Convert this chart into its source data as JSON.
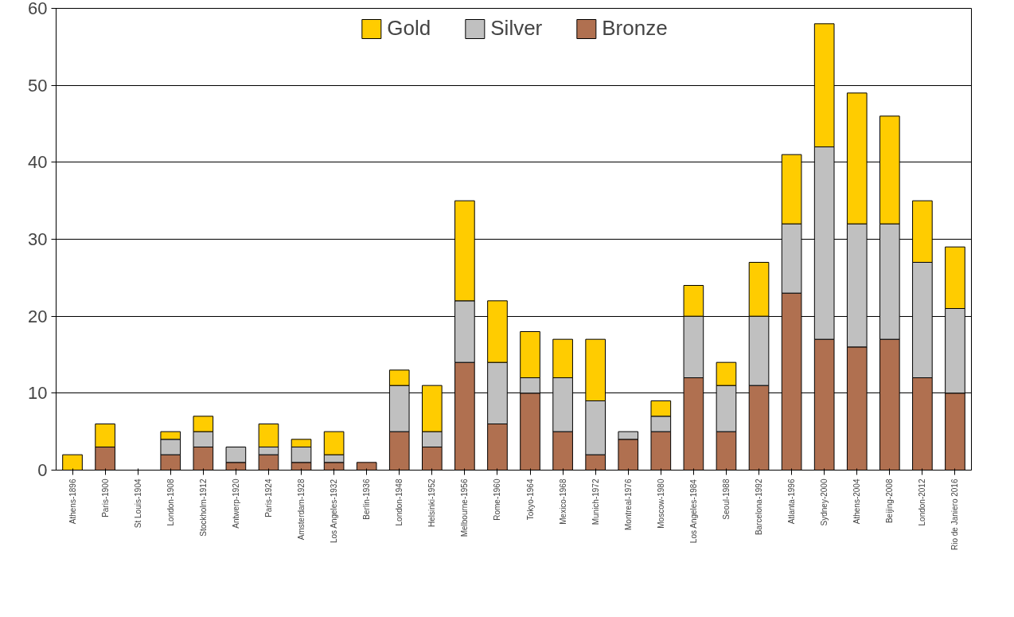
{
  "chart_data": {
    "type": "bar",
    "stacked": true,
    "categories": [
      "Athens-1896",
      "Paris-1900",
      "St Louis-1904",
      "London-1908",
      "Stockholm-1912",
      "Antwerp-1920",
      "Paris-1924",
      "Amsterdam-1928",
      "Los Angeles-1932",
      "Berlin-1936",
      "London-1948",
      "Helsinki-1952",
      "Melbourne-1956",
      "Rome-1960",
      "Tokyo-1964",
      "Mexico-1968",
      "Munich-1972",
      "Montreal-1976",
      "Moscow-1980",
      "Los Angeles-1984",
      "Seoul-1988",
      "Barcelona-1992",
      "Atlanta-1996",
      "Sydney-2000",
      "Athens-2004",
      "Beijing-2008",
      "London-2012",
      "Rio de Janiero 2016"
    ],
    "series": [
      {
        "name": "Bronze",
        "color": "#b07050",
        "values": [
          0,
          3,
          0,
          2,
          3,
          1,
          2,
          1,
          1,
          1,
          5,
          3,
          14,
          6,
          10,
          5,
          2,
          4,
          5,
          12,
          5,
          11,
          23,
          17,
          16,
          17,
          12,
          10
        ]
      },
      {
        "name": "Silver",
        "color": "#c0c0c0",
        "values": [
          0,
          0,
          0,
          2,
          2,
          2,
          1,
          2,
          1,
          0,
          6,
          2,
          8,
          8,
          2,
          7,
          7,
          1,
          2,
          8,
          6,
          9,
          9,
          25,
          16,
          15,
          15,
          11
        ]
      },
      {
        "name": "Gold",
        "color": "#ffcc00",
        "values": [
          2,
          3,
          0,
          1,
          2,
          0,
          3,
          1,
          3,
          0,
          2,
          6,
          13,
          8,
          6,
          5,
          8,
          0,
          2,
          4,
          3,
          7,
          9,
          16,
          17,
          14,
          8,
          8
        ]
      }
    ],
    "ylim": [
      0,
      60
    ],
    "yticks": [
      0,
      10,
      20,
      30,
      40,
      50,
      60
    ],
    "grid": "y",
    "legend": "top"
  }
}
